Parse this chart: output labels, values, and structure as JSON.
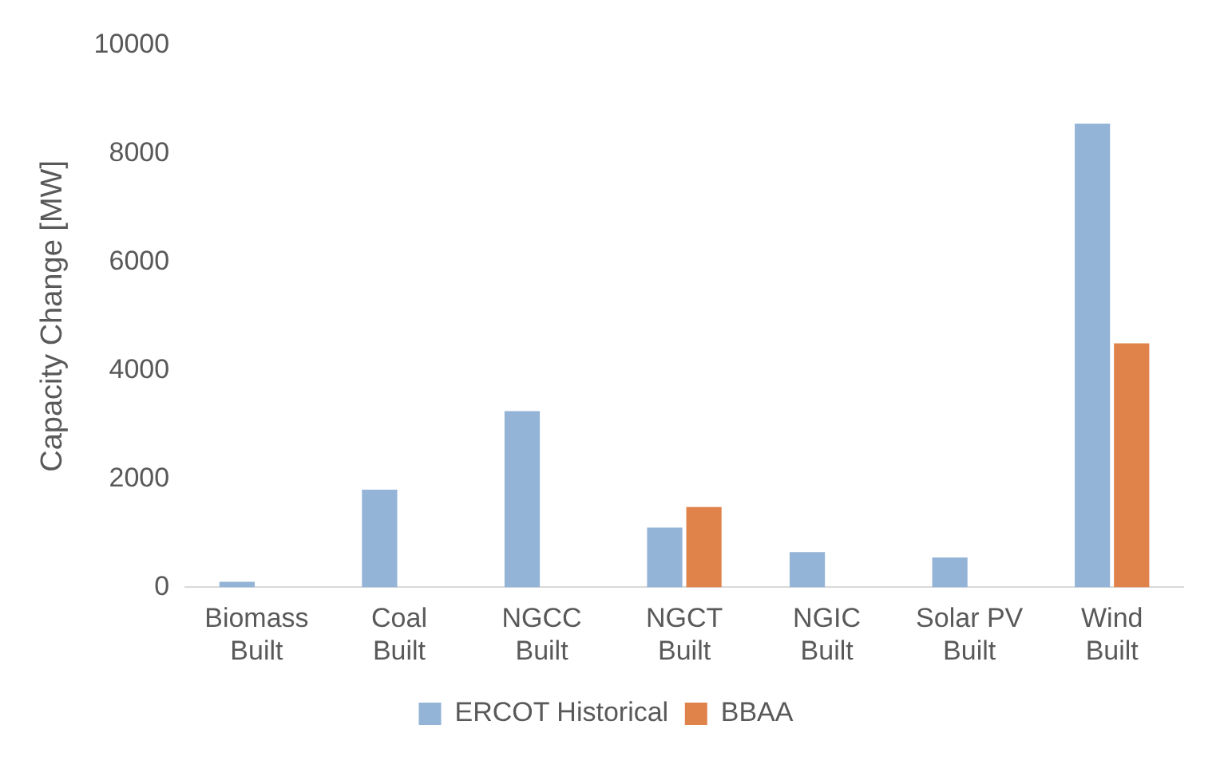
{
  "chart_data": {
    "type": "bar",
    "ylabel": "Capacity Change [MW]",
    "categories": [
      "Biomass Built",
      "Coal Built",
      "NGCC Built",
      "NGCT Built",
      "NGIC Built",
      "Solar PV Built",
      "Wind Built"
    ],
    "series": [
      {
        "name": "ERCOT Historical",
        "color": "#93b3d7",
        "values": [
          100,
          1800,
          3250,
          1100,
          650,
          550,
          8550
        ]
      },
      {
        "name": "BBAA",
        "color": "#e0834a",
        "values": [
          0,
          0,
          0,
          1480,
          0,
          0,
          4500
        ]
      }
    ],
    "ylim": [
      0,
      10000
    ],
    "yticks": [
      0,
      2000,
      4000,
      6000,
      8000,
      10000
    ],
    "grid": false,
    "legend": "bottom"
  }
}
